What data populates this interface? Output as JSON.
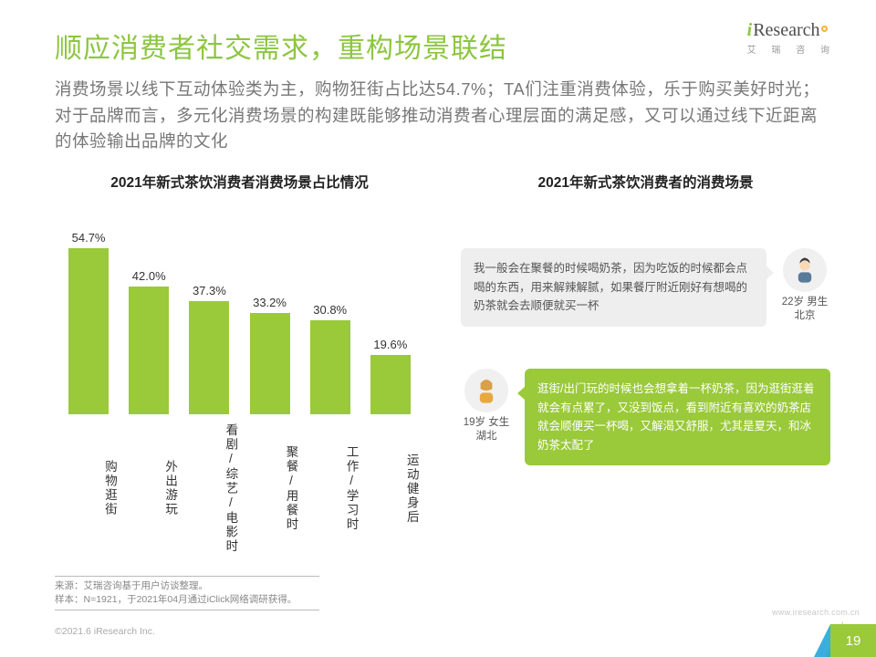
{
  "logo": {
    "i": "i",
    "rest": "Research",
    "sub": "艾 瑞 咨 询"
  },
  "title": "顺应消费者社交需求，重构场景联结",
  "subtitle": "消费场景以线下互动体验类为主，购物狂街占比达54.7%；TA们注重消费体验，乐于购买美好时光；对于品牌而言，多元化消费场景的构建既能够推动消费者心理层面的满足感，又可以通过线下近距离的体验输出品牌的文化",
  "chart": {
    "title": "2021年新式茶饮消费者消费场景占比情况",
    "type": "bar",
    "bar_color": "#9ac93a",
    "value_fontsize": 13,
    "label_fontsize": 13.5,
    "ylim_max": 60,
    "categories": [
      "购物逛街",
      "外出游玩",
      "看剧/综艺/电影时",
      "聚餐/用餐时",
      "工作/学习时",
      "运动健身后"
    ],
    "values": [
      54.7,
      42.0,
      37.3,
      33.2,
      30.8,
      19.6
    ],
    "labels": [
      "54.7%",
      "42.0%",
      "37.3%",
      "33.2%",
      "30.8%",
      "19.6%"
    ]
  },
  "right": {
    "title": "2021年新式茶饮消费者的消费场景",
    "persona1": {
      "text": "我一般会在聚餐的时候喝奶茶，因为吃饭的时候都会点喝的东西，用来解辣解腻，如果餐厅附近刚好有想喝的奶茶就会去顺便就买一杯",
      "age_gender": "22岁 男生",
      "city": "北京"
    },
    "persona2": {
      "text": "逛街/出门玩的时候也会想拿着一杯奶茶，因为逛街逛着就会有点累了，又没到饭点，看到附近有喜欢的奶茶店就会顺便买一杯喝，又解渴又舒服，尤其是夏天，和冰奶茶太配了",
      "age_gender": "19岁 女生",
      "city": "湖北"
    }
  },
  "source": {
    "l1": "来源：艾瑞咨询基于用户访谈整理。",
    "l2": "样本：N=1921，于2021年04月通过iClick网络调研获得。"
  },
  "copyright": "©2021.6 iResearch Inc.",
  "url": "www.iresearch.com.cn",
  "page": "19",
  "colors": {
    "accent": "#9ac93a",
    "accent2": "#1aa0d8"
  }
}
